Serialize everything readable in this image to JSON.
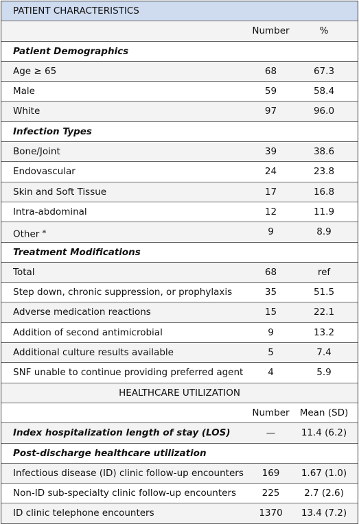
{
  "sections": [
    {
      "title": "PATIENT CHARACTERISTICS",
      "columns": [
        "Number",
        "%"
      ],
      "groups": [
        {
          "title": "Patient Demographics",
          "rows": [
            {
              "label": "Age ≥ 65",
              "values": [
                "68",
                "67.3"
              ]
            },
            {
              "label": "Male",
              "values": [
                "59",
                "58.4"
              ]
            },
            {
              "label": "White",
              "values": [
                "97",
                "96.0"
              ]
            }
          ]
        },
        {
          "title": "Infection Types",
          "rows": [
            {
              "label": "Bone/Joint",
              "values": [
                "39",
                "38.6"
              ]
            },
            {
              "label": "Endovascular",
              "values": [
                "24",
                "23.8"
              ]
            },
            {
              "label": "Skin and Soft Tissue",
              "values": [
                "17",
                "16.8"
              ]
            },
            {
              "label": "Intra-abdominal",
              "values": [
                "12",
                "11.9"
              ]
            },
            {
              "label": "Other",
              "note": "a",
              "values": [
                "9",
                "8.9"
              ]
            }
          ]
        },
        {
          "title": "Treatment Modifications",
          "rows": [
            {
              "label": "Total",
              "values": [
                "68",
                "ref"
              ]
            },
            {
              "label": "Step down, chronic suppression, or prophylaxis",
              "values": [
                "35",
                "51.5"
              ]
            },
            {
              "label": "Adverse medication reactions",
              "values": [
                "15",
                "22.1"
              ]
            },
            {
              "label": "Addition of second antimicrobial",
              "values": [
                "9",
                "13.2"
              ]
            },
            {
              "label": "Additional culture results available",
              "values": [
                "5",
                "7.4"
              ]
            },
            {
              "label": "SNF unable to continue providing preferred agent",
              "values": [
                "4",
                "5.9"
              ]
            }
          ]
        }
      ]
    },
    {
      "title": "HEALTHCARE UTILIZATION",
      "columns": [
        "Number",
        "Mean (SD)"
      ],
      "groups": [
        {
          "title": "Index hospitalization length of stay (LOS)",
          "values": [
            "—",
            "11.4 (6.2)"
          ],
          "rows": []
        },
        {
          "title": "Post-discharge healthcare utilization",
          "rows": [
            {
              "label": "Infectious disease (ID) clinic follow-up encounters",
              "values": [
                "169",
                "1.67 (1.0)"
              ]
            },
            {
              "label": "Non-ID sub-specialty clinic follow-up encounters",
              "values": [
                "225",
                "2.7 (2.6)"
              ]
            },
            {
              "label": "ID clinic telephone encounters",
              "values": [
                "1370",
                "13.4 (7.2)"
              ]
            }
          ]
        }
      ]
    }
  ]
}
